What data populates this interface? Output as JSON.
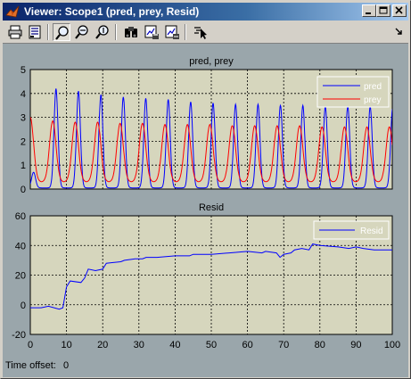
{
  "window": {
    "title": "Viewer: Scope1 (pred, prey, Resid)",
    "icons": [
      "matlab-logo-icon"
    ],
    "controls": {
      "minimize": "_",
      "maximize": "□",
      "close": "×"
    }
  },
  "toolbar": {
    "tools": [
      {
        "name": "print-icon"
      },
      {
        "name": "parameters-icon"
      },
      {
        "name": "zoom-icon"
      },
      {
        "name": "zoom-x-icon"
      },
      {
        "name": "zoom-y-icon"
      },
      {
        "name": "autoscale-binoculars-icon"
      },
      {
        "name": "save-axes-settings-icon"
      },
      {
        "name": "restore-axes-settings-icon"
      },
      {
        "name": "select-signal-icon"
      }
    ],
    "dock_icon": "dock-arrow-icon"
  },
  "colors": {
    "axes_bg": "#d6d6bd",
    "figure_bg": "#9aa6ab",
    "pred": "#0000ff",
    "prey": "#ff0000",
    "resid": "#0000ff",
    "legend_bg": "#d6d6bd"
  },
  "chart_data": [
    {
      "type": "line",
      "title": "pred, prey",
      "xlim": [
        0,
        100
      ],
      "ylim": [
        0,
        5
      ],
      "xticks": [],
      "yticks": [
        "0",
        "1",
        "2",
        "3",
        "4",
        "5"
      ],
      "grid": true,
      "legend_position": "top-right",
      "series": [
        {
          "name": "pred",
          "period": 6.2,
          "baseline": 0.05,
          "peaks": [
            0.7,
            4.2,
            4.1,
            3.95,
            3.85,
            3.8,
            3.75,
            3.65,
            3.6,
            3.55,
            3.55,
            3.5,
            3.5,
            3.45,
            3.45,
            3.45,
            3.4
          ]
        },
        {
          "name": "prey",
          "period": 6.2,
          "baseline": 0.3,
          "peaks": [
            3.0,
            2.85,
            2.8,
            2.8,
            2.75,
            2.75,
            2.7,
            2.7,
            2.7,
            2.65,
            2.65,
            2.65,
            2.65,
            2.6,
            2.6,
            2.6,
            2.6
          ]
        }
      ]
    },
    {
      "type": "line",
      "title": "Resid",
      "xlim": [
        0,
        100
      ],
      "ylim": [
        -20,
        60
      ],
      "xticks": [
        "0",
        "10",
        "20",
        "30",
        "40",
        "50",
        "60",
        "70",
        "80",
        "90",
        "100"
      ],
      "yticks": [
        "-20",
        "0",
        "20",
        "40",
        "60"
      ],
      "grid": true,
      "legend_position": "top-right",
      "series": [
        {
          "name": "Resid",
          "points": [
            [
              0,
              -2
            ],
            [
              3,
              -2
            ],
            [
              5,
              -1
            ],
            [
              8,
              -3
            ],
            [
              9,
              -2
            ],
            [
              10,
              12
            ],
            [
              11,
              16
            ],
            [
              14,
              15
            ],
            [
              15,
              18
            ],
            [
              16,
              24
            ],
            [
              18,
              23
            ],
            [
              20,
              24
            ],
            [
              21,
              28
            ],
            [
              25,
              29
            ],
            [
              26,
              30
            ],
            [
              29,
              31
            ],
            [
              31,
              31
            ],
            [
              32,
              32
            ],
            [
              35,
              32
            ],
            [
              40,
              33
            ],
            [
              44,
              33
            ],
            [
              45,
              34
            ],
            [
              50,
              34
            ],
            [
              55,
              35
            ],
            [
              60,
              36
            ],
            [
              64,
              35
            ],
            [
              65,
              36
            ],
            [
              68,
              35
            ],
            [
              69,
              32
            ],
            [
              70,
              34
            ],
            [
              72,
              35
            ],
            [
              73,
              37
            ],
            [
              75,
              38
            ],
            [
              77,
              37
            ],
            [
              78,
              41
            ],
            [
              80,
              40
            ],
            [
              85,
              39
            ],
            [
              88,
              38
            ],
            [
              90,
              39
            ],
            [
              92,
              38
            ],
            [
              95,
              37
            ],
            [
              100,
              37
            ]
          ]
        }
      ]
    }
  ],
  "status": {
    "time_offset_label": "Time offset:",
    "time_offset_value": "0"
  }
}
